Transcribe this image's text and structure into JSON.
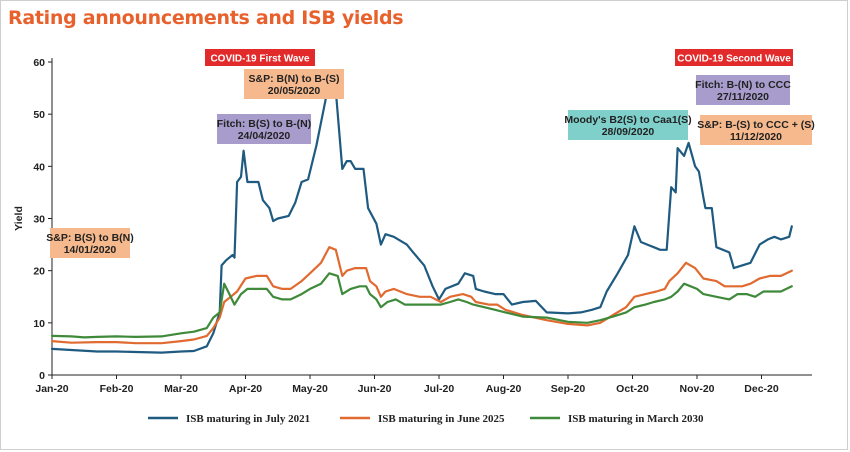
{
  "title": "Rating announcements and ISB yields",
  "chart_data": {
    "type": "line",
    "ylabel": "Yield",
    "ylim": [
      0,
      60
    ],
    "yticks": [
      0,
      10,
      20,
      30,
      40,
      50,
      60
    ],
    "xticks": [
      "Jan-20",
      "Feb-20",
      "Mar-20",
      "Apr-20",
      "May-20",
      "Jun-20",
      "Jul-20",
      "Aug-20",
      "Sep-20",
      "Oct-20",
      "Nov-20",
      "Dec-20"
    ],
    "grid": false,
    "legend_position": "bottom",
    "series": [
      {
        "name": "ISB maturing in July 2021",
        "color": "#1f5a80",
        "points": [
          [
            0,
            5.0
          ],
          [
            0.3,
            4.8
          ],
          [
            0.7,
            4.5
          ],
          [
            1.0,
            4.5
          ],
          [
            1.3,
            4.4
          ],
          [
            1.7,
            4.3
          ],
          [
            2.0,
            4.5
          ],
          [
            2.2,
            4.6
          ],
          [
            2.4,
            5.5
          ],
          [
            2.5,
            8.0
          ],
          [
            2.6,
            12.0
          ],
          [
            2.63,
            21.0
          ],
          [
            2.7,
            22.0
          ],
          [
            2.8,
            23.0
          ],
          [
            2.83,
            22.5
          ],
          [
            2.87,
            37.0
          ],
          [
            2.93,
            38.0
          ],
          [
            2.97,
            43.0
          ],
          [
            3.03,
            37.0
          ],
          [
            3.2,
            37.0
          ],
          [
            3.27,
            33.5
          ],
          [
            3.37,
            32.0
          ],
          [
            3.43,
            29.5
          ],
          [
            3.5,
            30.0
          ],
          [
            3.67,
            30.5
          ],
          [
            3.77,
            33.0
          ],
          [
            3.87,
            37.0
          ],
          [
            3.97,
            37.5
          ],
          [
            4.1,
            44.0
          ],
          [
            4.27,
            54.5
          ],
          [
            4.4,
            54.5
          ],
          [
            4.5,
            39.5
          ],
          [
            4.57,
            41.0
          ],
          [
            4.63,
            41.0
          ],
          [
            4.7,
            39.5
          ],
          [
            4.83,
            39.5
          ],
          [
            4.9,
            32.0
          ],
          [
            5.03,
            29.0
          ],
          [
            5.1,
            25.0
          ],
          [
            5.17,
            27.0
          ],
          [
            5.3,
            26.5
          ],
          [
            5.5,
            25.0
          ],
          [
            5.6,
            23.5
          ],
          [
            5.77,
            21.0
          ],
          [
            5.9,
            17.0
          ],
          [
            6.0,
            14.5
          ],
          [
            6.1,
            16.5
          ],
          [
            6.3,
            17.5
          ],
          [
            6.4,
            19.5
          ],
          [
            6.53,
            19.0
          ],
          [
            6.57,
            16.5
          ],
          [
            6.7,
            16.0
          ],
          [
            6.87,
            15.5
          ],
          [
            7.0,
            15.5
          ],
          [
            7.13,
            13.5
          ],
          [
            7.3,
            14.0
          ],
          [
            7.5,
            14.2
          ],
          [
            7.67,
            12.0
          ],
          [
            8.0,
            11.8
          ],
          [
            8.2,
            12.0
          ],
          [
            8.37,
            12.5
          ],
          [
            8.5,
            13.0
          ],
          [
            8.6,
            16.0
          ],
          [
            8.77,
            19.5
          ],
          [
            8.93,
            23.0
          ],
          [
            9.03,
            28.5
          ],
          [
            9.13,
            25.5
          ],
          [
            9.23,
            25.0
          ],
          [
            9.33,
            24.5
          ],
          [
            9.43,
            24.0
          ],
          [
            9.53,
            24.0
          ],
          [
            9.6,
            36.0
          ],
          [
            9.67,
            35.0
          ],
          [
            9.7,
            43.5
          ],
          [
            9.8,
            42.0
          ],
          [
            9.87,
            44.5
          ],
          [
            9.97,
            40.0
          ],
          [
            10.03,
            39.0
          ],
          [
            10.1,
            34.0
          ],
          [
            10.13,
            32.0
          ],
          [
            10.23,
            32.0
          ],
          [
            10.3,
            24.5
          ],
          [
            10.5,
            23.5
          ],
          [
            10.57,
            20.5
          ],
          [
            10.7,
            21.0
          ],
          [
            10.83,
            21.5
          ],
          [
            10.97,
            25.0
          ],
          [
            11.1,
            26.0
          ],
          [
            11.2,
            26.5
          ],
          [
            11.3,
            26.0
          ],
          [
            11.43,
            26.5
          ],
          [
            11.47,
            28.5
          ]
        ]
      },
      {
        "name": "ISB maturing in June 2025",
        "color": "#e06a30",
        "points": [
          [
            0,
            6.5
          ],
          [
            0.3,
            6.2
          ],
          [
            0.7,
            6.3
          ],
          [
            1.0,
            6.3
          ],
          [
            1.3,
            6.1
          ],
          [
            1.7,
            6.1
          ],
          [
            2.0,
            6.5
          ],
          [
            2.2,
            6.8
          ],
          [
            2.4,
            7.5
          ],
          [
            2.5,
            9.0
          ],
          [
            2.6,
            11.0
          ],
          [
            2.67,
            14.0
          ],
          [
            2.77,
            15.0
          ],
          [
            2.87,
            16.0
          ],
          [
            3.0,
            18.5
          ],
          [
            3.17,
            19.0
          ],
          [
            3.33,
            19.0
          ],
          [
            3.43,
            17.0
          ],
          [
            3.57,
            16.5
          ],
          [
            3.7,
            16.5
          ],
          [
            3.87,
            18.0
          ],
          [
            4.0,
            19.5
          ],
          [
            4.17,
            21.5
          ],
          [
            4.3,
            24.5
          ],
          [
            4.4,
            24.0
          ],
          [
            4.5,
            19.0
          ],
          [
            4.57,
            20.0
          ],
          [
            4.7,
            20.5
          ],
          [
            4.87,
            20.5
          ],
          [
            4.93,
            18.0
          ],
          [
            5.03,
            17.0
          ],
          [
            5.1,
            15.0
          ],
          [
            5.17,
            16.0
          ],
          [
            5.3,
            16.5
          ],
          [
            5.5,
            15.5
          ],
          [
            5.7,
            15.0
          ],
          [
            5.87,
            15.0
          ],
          [
            6.03,
            14.0
          ],
          [
            6.17,
            15.0
          ],
          [
            6.37,
            15.5
          ],
          [
            6.5,
            15.0
          ],
          [
            6.57,
            14.0
          ],
          [
            6.77,
            13.5
          ],
          [
            6.9,
            13.5
          ],
          [
            7.03,
            12.5
          ],
          [
            7.3,
            11.5
          ],
          [
            7.67,
            10.5
          ],
          [
            8.0,
            9.8
          ],
          [
            8.3,
            9.5
          ],
          [
            8.5,
            10.0
          ],
          [
            8.7,
            11.5
          ],
          [
            8.9,
            13.0
          ],
          [
            9.03,
            15.0
          ],
          [
            9.2,
            15.5
          ],
          [
            9.37,
            16.0
          ],
          [
            9.5,
            16.5
          ],
          [
            9.57,
            18.0
          ],
          [
            9.7,
            19.5
          ],
          [
            9.83,
            21.5
          ],
          [
            9.97,
            20.5
          ],
          [
            10.1,
            18.5
          ],
          [
            10.3,
            18.0
          ],
          [
            10.43,
            17.0
          ],
          [
            10.57,
            17.0
          ],
          [
            10.7,
            17.0
          ],
          [
            10.83,
            17.5
          ],
          [
            10.97,
            18.5
          ],
          [
            11.13,
            19.0
          ],
          [
            11.3,
            19.0
          ],
          [
            11.47,
            20.0
          ]
        ]
      },
      {
        "name": "ISB maturing in March 2030",
        "color": "#3e8a3a",
        "points": [
          [
            0,
            7.5
          ],
          [
            0.3,
            7.4
          ],
          [
            0.5,
            7.2
          ],
          [
            0.7,
            7.3
          ],
          [
            1.0,
            7.4
          ],
          [
            1.3,
            7.3
          ],
          [
            1.7,
            7.4
          ],
          [
            2.0,
            8.0
          ],
          [
            2.2,
            8.3
          ],
          [
            2.4,
            9.0
          ],
          [
            2.5,
            11.0
          ],
          [
            2.6,
            12.0
          ],
          [
            2.67,
            17.5
          ],
          [
            2.73,
            16.0
          ],
          [
            2.83,
            13.5
          ],
          [
            2.93,
            15.5
          ],
          [
            3.03,
            16.5
          ],
          [
            3.2,
            16.5
          ],
          [
            3.33,
            16.5
          ],
          [
            3.43,
            15.0
          ],
          [
            3.57,
            14.5
          ],
          [
            3.7,
            14.5
          ],
          [
            3.87,
            15.5
          ],
          [
            4.0,
            16.5
          ],
          [
            4.17,
            17.5
          ],
          [
            4.3,
            19.5
          ],
          [
            4.43,
            19.0
          ],
          [
            4.5,
            15.5
          ],
          [
            4.63,
            16.5
          ],
          [
            4.77,
            17.0
          ],
          [
            4.87,
            17.0
          ],
          [
            4.93,
            15.5
          ],
          [
            5.03,
            14.5
          ],
          [
            5.1,
            13.0
          ],
          [
            5.2,
            14.0
          ],
          [
            5.33,
            14.5
          ],
          [
            5.47,
            13.5
          ],
          [
            5.6,
            13.5
          ],
          [
            5.73,
            13.5
          ],
          [
            5.9,
            13.5
          ],
          [
            6.03,
            13.5
          ],
          [
            6.17,
            14.0
          ],
          [
            6.3,
            14.5
          ],
          [
            6.43,
            14.0
          ],
          [
            6.53,
            13.5
          ],
          [
            6.7,
            13.0
          ],
          [
            6.87,
            12.5
          ],
          [
            7.03,
            12.0
          ],
          [
            7.3,
            11.2
          ],
          [
            7.67,
            11.0
          ],
          [
            8.0,
            10.2
          ],
          [
            8.3,
            10.0
          ],
          [
            8.5,
            10.5
          ],
          [
            8.7,
            11.2
          ],
          [
            8.9,
            12.0
          ],
          [
            9.03,
            13.0
          ],
          [
            9.2,
            13.5
          ],
          [
            9.33,
            14.0
          ],
          [
            9.5,
            14.5
          ],
          [
            9.6,
            15.0
          ],
          [
            9.7,
            16.0
          ],
          [
            9.8,
            17.5
          ],
          [
            9.9,
            17.0
          ],
          [
            10.0,
            16.5
          ],
          [
            10.1,
            15.5
          ],
          [
            10.3,
            15.0
          ],
          [
            10.5,
            14.5
          ],
          [
            10.63,
            15.5
          ],
          [
            10.77,
            15.5
          ],
          [
            10.9,
            15.0
          ],
          [
            11.03,
            16.0
          ],
          [
            11.17,
            16.0
          ],
          [
            11.3,
            16.0
          ],
          [
            11.47,
            17.0
          ]
        ]
      }
    ],
    "annotations": [
      {
        "style": "red",
        "lines": [
          "COVID-19 First Wave"
        ]
      },
      {
        "style": "red",
        "lines": [
          "COVID-19 Second Wave"
        ]
      },
      {
        "style": "orange",
        "lines": [
          "S&P: B(S) to B(N)",
          "14/01/2020"
        ]
      },
      {
        "style": "purple",
        "lines": [
          "Fitch: B(S) to B-(N)",
          "24/04/2020"
        ]
      },
      {
        "style": "orange",
        "lines": [
          "S&P: B(N) to B-(S)",
          "20/05/2020"
        ]
      },
      {
        "style": "teal",
        "lines": [
          "Moody's B2(S) to Caa1(S)",
          "28/09/2020"
        ]
      },
      {
        "style": "purple",
        "lines": [
          "Fitch: B-(N) to CCC",
          "27/11/2020"
        ]
      },
      {
        "style": "orange",
        "lines": [
          "S&P: B-(S) to CCC + (S)",
          "11/12/2020"
        ]
      }
    ],
    "annotation_colors": {
      "red": "#e32a2a",
      "orange": "#f6b98d",
      "purple": "#a89ccd",
      "teal": "#7fcfcb"
    }
  }
}
